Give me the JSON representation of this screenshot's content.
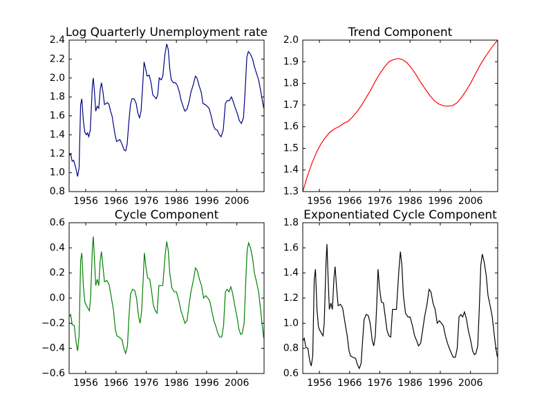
{
  "chart_data": [
    {
      "type": "line",
      "title": "Log Quarterly Unemployment rate",
      "color": "#000080",
      "x": [
        1950.5,
        1951,
        1951.5,
        1952,
        1952.7,
        1953.3,
        1953.8,
        1954.3,
        1954.7,
        1955.2,
        1955.7,
        1956.2,
        1956.6,
        1957,
        1957.5,
        1958.2,
        1958.5,
        1958.9,
        1959.3,
        1959.8,
        1960.3,
        1960.8,
        1961.2,
        1961.7,
        1962.2,
        1962.7,
        1963.2,
        1963.7,
        1964.2,
        1964.7,
        1965.2,
        1965.7,
        1966.2,
        1966.8,
        1967.3,
        1968,
        1968.7,
        1969.2,
        1969.7,
        1970.3,
        1970.8,
        1971.3,
        1972,
        1972.7,
        1973.3,
        1973.8,
        1974.3,
        1974.8,
        1975.3,
        1975.8,
        1976.3,
        1977,
        1977.6,
        1978.2,
        1978.8,
        1979.3,
        1979.8,
        1980.3,
        1981,
        1981.5,
        1982.2,
        1982.8,
        1983.3,
        1983.8,
        1984.3,
        1985,
        1985.7,
        1986.3,
        1987,
        1987.5,
        1988.2,
        1988.8,
        1989.5,
        1990.2,
        1990.8,
        1991.5,
        1992.3,
        1992.8,
        1993.5,
        1994.2,
        1994.8,
        1995.5,
        1996.2,
        1996.8,
        1997.5,
        1998.2,
        1998.8,
        1999.5,
        2000.2,
        2000.8,
        2001.5,
        2002.2,
        2002.8,
        2003.5,
        2004.2,
        2004.8,
        2005.5,
        2006.2,
        2006.8,
        2007.5,
        2008.2,
        2008.8,
        2009.3,
        2009.8,
        2010.5,
        2011.2,
        2011.8,
        2012.5,
        2013.2,
        2013.8,
        2014.5,
        2014.9
      ],
      "values": [
        1.18,
        1.2,
        1.12,
        1.13,
        1.05,
        0.96,
        1.05,
        1.72,
        1.78,
        1.55,
        1.43,
        1.4,
        1.42,
        1.38,
        1.45,
        1.92,
        2.0,
        1.85,
        1.65,
        1.7,
        1.68,
        1.88,
        1.95,
        1.85,
        1.72,
        1.73,
        1.74,
        1.72,
        1.65,
        1.6,
        1.5,
        1.4,
        1.33,
        1.34,
        1.35,
        1.3,
        1.24,
        1.23,
        1.3,
        1.55,
        1.72,
        1.78,
        1.78,
        1.73,
        1.62,
        1.58,
        1.65,
        1.9,
        2.17,
        2.1,
        2.02,
        2.03,
        1.95,
        1.82,
        1.8,
        1.78,
        1.82,
        2.0,
        1.98,
        2.02,
        2.25,
        2.36,
        2.3,
        2.1,
        1.98,
        1.95,
        1.95,
        1.92,
        1.85,
        1.77,
        1.7,
        1.65,
        1.67,
        1.75,
        1.85,
        1.92,
        2.02,
        2.0,
        1.92,
        1.85,
        1.73,
        1.72,
        1.7,
        1.68,
        1.6,
        1.5,
        1.46,
        1.45,
        1.4,
        1.38,
        1.45,
        1.73,
        1.76,
        1.76,
        1.8,
        1.75,
        1.68,
        1.62,
        1.55,
        1.52,
        1.58,
        1.9,
        2.22,
        2.28,
        2.25,
        2.2,
        2.12,
        2.05,
        1.98,
        1.88,
        1.75,
        1.68
      ],
      "xlim": [
        1950.5,
        2015
      ],
      "xticks": [
        1956,
        1966,
        1976,
        1986,
        1996,
        2006
      ],
      "ylim": [
        0.8,
        2.4
      ],
      "yticks": [
        0.8,
        {
          "value": 1.0,
          "label": "1.0"
        },
        1.2,
        1.4,
        1.6,
        1.8,
        {
          "value": 2.0,
          "label": "2.0"
        },
        2.2,
        2.4
      ]
    },
    {
      "type": "line",
      "title": "Trend Component",
      "color": "#ff0000",
      "x": [
        1950.5,
        1952,
        1953.5,
        1955,
        1956.5,
        1958,
        1959.5,
        1961,
        1962.5,
        1964,
        1965.5,
        1967,
        1968.5,
        1970,
        1971.5,
        1973,
        1974.5,
        1976,
        1977.5,
        1979,
        1980.5,
        1982,
        1983.5,
        1985,
        1986.5,
        1988,
        1989.5,
        1991,
        1992.5,
        1994,
        1995.5,
        1997,
        1998.5,
        2000,
        2001.5,
        2003,
        2004.5,
        2006,
        2007.5,
        2009,
        2010.5,
        2012,
        2013.5,
        2015
      ],
      "values": [
        1.3,
        1.37,
        1.43,
        1.48,
        1.52,
        1.55,
        1.575,
        1.59,
        1.6,
        1.615,
        1.625,
        1.645,
        1.67,
        1.7,
        1.735,
        1.77,
        1.81,
        1.845,
        1.875,
        1.9,
        1.91,
        1.915,
        1.91,
        1.895,
        1.87,
        1.84,
        1.805,
        1.775,
        1.745,
        1.72,
        1.705,
        1.697,
        1.695,
        1.697,
        1.71,
        1.735,
        1.765,
        1.8,
        1.84,
        1.88,
        1.915,
        1.945,
        1.975,
        2.0
      ],
      "xlim": [
        1950.5,
        2015
      ],
      "xticks": [
        1956,
        1966,
        1976,
        1986,
        1996,
        2006
      ],
      "ylim": [
        1.3,
        2.0
      ],
      "yticks": [
        1.3,
        1.4,
        1.5,
        1.6,
        1.7,
        1.8,
        1.9,
        {
          "value": 2.0,
          "label": "2.0"
        }
      ]
    },
    {
      "type": "line",
      "title": "Cycle Component",
      "color": "#008000",
      "x": [
        1950.5,
        1951,
        1951.5,
        1952.2,
        1952.8,
        1953.3,
        1953.8,
        1954.3,
        1954.7,
        1955.2,
        1955.7,
        1956.2,
        1956.7,
        1957.2,
        1957.6,
        1958.2,
        1958.5,
        1958.9,
        1959.3,
        1959.8,
        1960.3,
        1960.8,
        1961.2,
        1961.7,
        1962.2,
        1963,
        1963.7,
        1964.5,
        1965.2,
        1965.8,
        1966.3,
        1967,
        1968,
        1968.6,
        1969.2,
        1969.8,
        1970.3,
        1970.8,
        1971.5,
        1972.2,
        1972.8,
        1973.5,
        1974,
        1974.5,
        1975,
        1975.4,
        1975.9,
        1976.5,
        1977.2,
        1977.8,
        1978.4,
        1979,
        1979.6,
        1980.2,
        1980.8,
        1981.5,
        1982.3,
        1982.8,
        1983.3,
        1983.8,
        1984.5,
        1985.3,
        1986,
        1986.8,
        1987.5,
        1988.2,
        1988.8,
        1989.5,
        1990.2,
        1990.8,
        1991.6,
        1992.3,
        1992.9,
        1993.6,
        1994.3,
        1995,
        1995.7,
        1996.4,
        1997,
        1997.7,
        1998.4,
        1999,
        1999.7,
        2000.3,
        2001,
        2001.6,
        2002.2,
        2002.8,
        2003.4,
        2004,
        2004.6,
        2005.3,
        2006,
        2006.7,
        2007.3,
        2007.8,
        2008.4,
        2008.9,
        2009.4,
        2009.9,
        2010.5,
        2011.2,
        2011.8,
        2012.5,
        2013.2,
        2013.8,
        2014.4,
        2014.9
      ],
      "values": [
        -0.15,
        -0.13,
        -0.21,
        -0.22,
        -0.35,
        -0.42,
        -0.3,
        0.3,
        0.36,
        0.1,
        -0.03,
        -0.06,
        -0.08,
        -0.1,
        0,
        0.4,
        0.49,
        0.3,
        0.1,
        0.15,
        0.1,
        0.3,
        0.37,
        0.25,
        0.13,
        0.14,
        0.11,
        0,
        -0.1,
        -0.25,
        -0.3,
        -0.31,
        -0.33,
        -0.4,
        -0.44,
        -0.38,
        -0.15,
        0.03,
        0.07,
        0.06,
        0,
        -0.15,
        -0.2,
        -0.1,
        0.15,
        0.36,
        0.25,
        0.16,
        0.15,
        0.05,
        -0.06,
        -0.1,
        -0.12,
        0.1,
        0.1,
        0.1,
        0.35,
        0.45,
        0.38,
        0.2,
        0.08,
        0.05,
        0.05,
        -0.02,
        -0.1,
        -0.15,
        -0.2,
        -0.18,
        -0.05,
        0.05,
        0.14,
        0.24,
        0.22,
        0.15,
        0.1,
        0,
        0.02,
        0,
        -0.02,
        -0.1,
        -0.18,
        -0.22,
        -0.28,
        -0.31,
        -0.31,
        -0.22,
        0.05,
        0.07,
        0.05,
        0.09,
        0.04,
        -0.06,
        -0.14,
        -0.25,
        -0.29,
        -0.28,
        -0.2,
        0.1,
        0.38,
        0.44,
        0.4,
        0.32,
        0.2,
        0.13,
        0.05,
        -0.08,
        -0.22,
        -0.32
      ],
      "xlim": [
        1950.5,
        2015
      ],
      "xticks": [
        1956,
        1966,
        1976,
        1986,
        1996,
        2006
      ],
      "ylim": [
        -0.6,
        0.6
      ],
      "yticks": [
        {
          "value": -0.6,
          "label": "−0.6"
        },
        {
          "value": -0.4,
          "label": "−0.4"
        },
        {
          "value": -0.2,
          "label": "−0.2"
        },
        {
          "value": 0,
          "label": "0.0"
        },
        0.2,
        0.4,
        0.6
      ]
    },
    {
      "type": "line",
      "title": "Exponentiated Cycle Component",
      "color": "#000000",
      "x": [
        1950.5,
        1951,
        1951.5,
        1952.2,
        1952.8,
        1953.3,
        1953.8,
        1954.3,
        1954.7,
        1955.2,
        1955.7,
        1956.2,
        1956.7,
        1957.2,
        1957.6,
        1958.2,
        1958.5,
        1958.9,
        1959.3,
        1959.8,
        1960.3,
        1960.8,
        1961.2,
        1961.7,
        1962.2,
        1963,
        1963.7,
        1964.5,
        1965.2,
        1965.8,
        1966.3,
        1967,
        1968,
        1968.6,
        1969.2,
        1969.8,
        1970.3,
        1970.8,
        1971.5,
        1972.2,
        1972.8,
        1973.5,
        1974,
        1974.5,
        1975,
        1975.4,
        1975.9,
        1976.5,
        1977.2,
        1977.8,
        1978.4,
        1979,
        1979.6,
        1980.2,
        1980.8,
        1981.5,
        1982.3,
        1982.8,
        1983.3,
        1983.8,
        1984.5,
        1985.3,
        1986,
        1986.8,
        1987.5,
        1988.2,
        1988.8,
        1989.5,
        1990.2,
        1990.8,
        1991.6,
        1992.3,
        1992.9,
        1993.6,
        1994.3,
        1995,
        1995.7,
        1996.4,
        1997,
        1997.7,
        1998.4,
        1999,
        1999.7,
        2000.3,
        2001,
        2001.6,
        2002.2,
        2002.8,
        2003.4,
        2004,
        2004.6,
        2005.3,
        2006,
        2006.7,
        2007.3,
        2007.8,
        2008.4,
        2008.9,
        2009.4,
        2009.9,
        2010.5,
        2011.2,
        2011.8,
        2012.5,
        2013.2,
        2013.8,
        2014.4,
        2014.9
      ],
      "values": [
        0.86,
        0.88,
        0.81,
        0.8,
        0.7,
        0.66,
        0.74,
        1.35,
        1.43,
        1.11,
        0.97,
        0.94,
        0.92,
        0.9,
        1.0,
        1.49,
        1.63,
        1.35,
        1.11,
        1.16,
        1.11,
        1.35,
        1.45,
        1.28,
        1.14,
        1.15,
        1.12,
        1.0,
        0.9,
        0.78,
        0.74,
        0.73,
        0.72,
        0.67,
        0.64,
        0.68,
        0.86,
        1.03,
        1.07,
        1.06,
        1.0,
        0.86,
        0.82,
        0.9,
        1.16,
        1.43,
        1.28,
        1.17,
        1.16,
        1.05,
        0.94,
        0.9,
        0.89,
        1.11,
        1.11,
        1.11,
        1.42,
        1.57,
        1.46,
        1.22,
        1.08,
        1.05,
        1.05,
        0.98,
        0.9,
        0.86,
        0.82,
        0.84,
        0.95,
        1.05,
        1.15,
        1.27,
        1.25,
        1.16,
        1.11,
        1.0,
        1.02,
        1.0,
        0.98,
        0.9,
        0.84,
        0.8,
        0.76,
        0.73,
        0.73,
        0.8,
        1.05,
        1.07,
        1.05,
        1.09,
        1.04,
        0.94,
        0.87,
        0.78,
        0.75,
        0.76,
        0.82,
        1.11,
        1.46,
        1.55,
        1.49,
        1.38,
        1.22,
        1.14,
        1.05,
        0.92,
        0.8,
        0.73
      ],
      "xlim": [
        1950.5,
        2015
      ],
      "xticks": [
        1956,
        1966,
        1976,
        1986,
        1996,
        2006
      ],
      "ylim": [
        0.6,
        1.8
      ],
      "yticks": [
        0.6,
        0.8,
        {
          "value": 1.0,
          "label": "1.0"
        },
        1.2,
        1.4,
        1.6,
        1.8
      ]
    }
  ]
}
